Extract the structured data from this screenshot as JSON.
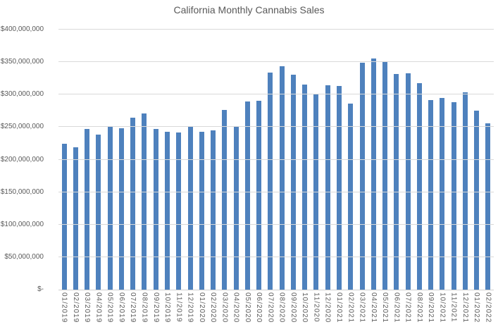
{
  "chart_data": {
    "type": "bar",
    "title": "California Monthly Cannabis Sales",
    "xlabel": "",
    "ylabel": "",
    "ylim": [
      0,
      400000000
    ],
    "y_tick_step": 50000000,
    "grid": true,
    "legend": false,
    "categories": [
      "01/2019",
      "02/2019",
      "03/2019",
      "04/2019",
      "05/2019",
      "06/2019",
      "07/2019",
      "08/2019",
      "09/2019",
      "10/2019",
      "11/2019",
      "12/2019",
      "01/2020",
      "02/2020",
      "03/2020",
      "04/2020",
      "05/2020",
      "06/2020",
      "07/2020",
      "08/2020",
      "09/2020",
      "10/2020",
      "11/2020",
      "12/2020",
      "01/2021",
      "02/2021",
      "03/2021",
      "04/2021",
      "05/2021",
      "06/2021",
      "07/2021",
      "08/2021",
      "09/2021",
      "10/2021",
      "11/2021",
      "12/2021",
      "01/2022",
      "02/2022"
    ],
    "values": [
      224000000,
      219000000,
      247000000,
      239000000,
      252000000,
      248000000,
      265000000,
      271000000,
      247000000,
      243000000,
      242000000,
      250000000,
      243000000,
      245000000,
      276000000,
      251000000,
      289000000,
      291000000,
      334000000,
      344000000,
      331000000,
      316000000,
      301000000,
      314000000,
      313000000,
      286000000,
      349000000,
      356000000,
      350000000,
      332000000,
      333000000,
      318000000,
      292000000,
      295000000,
      288000000,
      303000000,
      275000000,
      256000000
    ],
    "y_ticks": [
      {
        "value": 0,
        "label": "$-"
      },
      {
        "value": 50000000,
        "label": "$50,000,000"
      },
      {
        "value": 100000000,
        "label": "$100,000,000"
      },
      {
        "value": 150000000,
        "label": "$150,000,000"
      },
      {
        "value": 200000000,
        "label": "$200,000,000"
      },
      {
        "value": 250000000,
        "label": "$250,000,000"
      },
      {
        "value": 300000000,
        "label": "$300,000,000"
      },
      {
        "value": 350000000,
        "label": "$350,000,000"
      },
      {
        "value": 400000000,
        "label": "$400,000,000"
      }
    ],
    "colors": {
      "bar": "#4e81bd",
      "gridline": "#d9d9d9",
      "axis_line": "#cfcfcf",
      "text": "#595959"
    }
  }
}
